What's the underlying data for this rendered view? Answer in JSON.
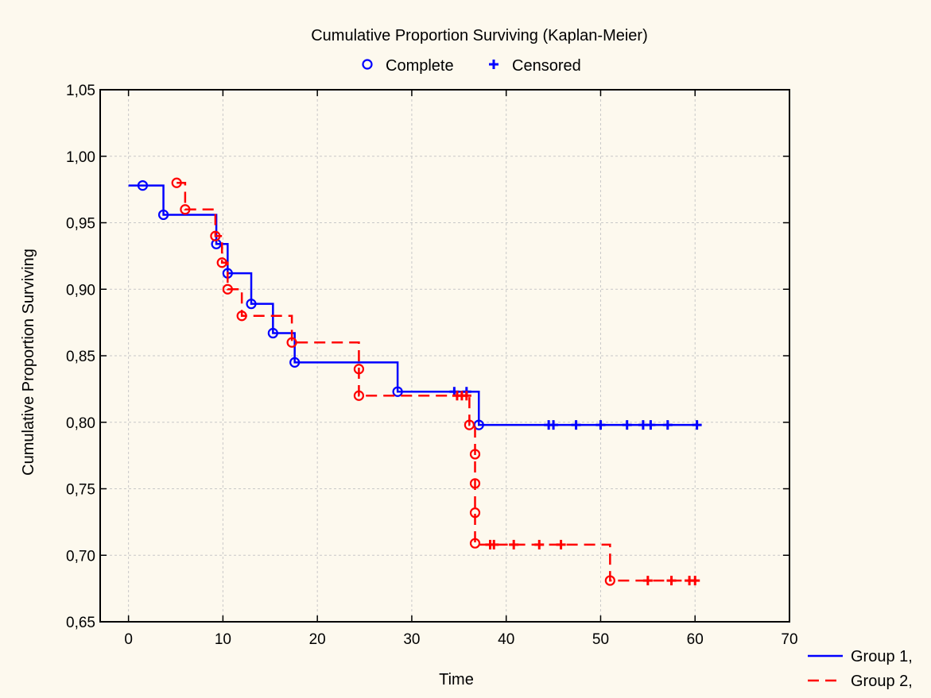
{
  "chart_data": {
    "type": "line",
    "title": "Cumulative Proportion Surviving (Kaplan-Meier)",
    "xlabel": "Time",
    "ylabel": "Cumulative Proportion Surviving",
    "xlim": [
      -3,
      70
    ],
    "ylim": [
      0.65,
      1.05
    ],
    "x_ticks": [
      0,
      10,
      20,
      30,
      40,
      50,
      60,
      70
    ],
    "y_ticks": [
      0.65,
      0.7,
      0.75,
      0.8,
      0.85,
      0.9,
      0.95,
      1.0,
      1.05
    ],
    "x_tick_labels": [
      "0",
      "10",
      "20",
      "30",
      "40",
      "50",
      "60",
      "70"
    ],
    "y_tick_labels": [
      "0,65",
      "0,70",
      "0,75",
      "0,80",
      "0,85",
      "0,90",
      "0,95",
      "1,00",
      "1,05"
    ],
    "grid": true,
    "marker_legend": [
      {
        "label": "Complete",
        "marker": "circle",
        "color": "#0000ff"
      },
      {
        "label": "Censored",
        "marker": "plus",
        "color": "#0000ff"
      }
    ],
    "series": [
      {
        "name": "Group 1,",
        "color": "#0000ff",
        "line_style": "solid",
        "step_points": [
          [
            0,
            0.978
          ],
          [
            1.5,
            0.978
          ],
          [
            3.7,
            0.956
          ],
          [
            9.3,
            0.934
          ],
          [
            10.5,
            0.912
          ],
          [
            13,
            0.889
          ],
          [
            15.3,
            0.867
          ],
          [
            17.6,
            0.845
          ],
          [
            28.5,
            0.823
          ],
          [
            37.1,
            0.798
          ],
          [
            60.2,
            0.798
          ]
        ],
        "complete": [
          [
            1.5,
            0.978
          ],
          [
            3.7,
            0.956
          ],
          [
            9.3,
            0.934
          ],
          [
            10.5,
            0.912
          ],
          [
            13,
            0.889
          ],
          [
            15.3,
            0.867
          ],
          [
            17.6,
            0.845
          ],
          [
            28.5,
            0.823
          ],
          [
            37.1,
            0.798
          ]
        ],
        "censored": [
          [
            34.5,
            0.823
          ],
          [
            35.8,
            0.823
          ],
          [
            44.5,
            0.798
          ],
          [
            45,
            0.798
          ],
          [
            47.4,
            0.798
          ],
          [
            50,
            0.798
          ],
          [
            52.8,
            0.798
          ],
          [
            54.5,
            0.798
          ],
          [
            55.3,
            0.798
          ],
          [
            57.1,
            0.798
          ],
          [
            60.2,
            0.798
          ]
        ]
      },
      {
        "name": "Group 2,",
        "color": "#ff0000",
        "line_style": "dashed",
        "step_points": [
          [
            5.1,
            0.98
          ],
          [
            6,
            0.96
          ],
          [
            9.2,
            0.94
          ],
          [
            9.9,
            0.92
          ],
          [
            10.5,
            0.9
          ],
          [
            12,
            0.88
          ],
          [
            17.3,
            0.86
          ],
          [
            24.4,
            0.82
          ],
          [
            36.1,
            0.798
          ],
          [
            36.7,
            0.708
          ],
          [
            51,
            0.681
          ],
          [
            60,
            0.681
          ]
        ],
        "complete": [
          [
            5.1,
            0.98
          ],
          [
            6,
            0.96
          ],
          [
            9.2,
            0.94
          ],
          [
            9.9,
            0.92
          ],
          [
            10.5,
            0.9
          ],
          [
            12,
            0.88
          ],
          [
            17.3,
            0.86
          ],
          [
            24.4,
            0.84
          ],
          [
            24.4,
            0.82
          ],
          [
            36.1,
            0.798
          ],
          [
            36.7,
            0.776
          ],
          [
            36.7,
            0.754
          ],
          [
            36.7,
            0.732
          ],
          [
            36.7,
            0.709
          ],
          [
            51,
            0.681
          ]
        ],
        "censored": [
          [
            34.8,
            0.82
          ],
          [
            35.3,
            0.82
          ],
          [
            35.8,
            0.82
          ],
          [
            38.3,
            0.708
          ],
          [
            38.7,
            0.708
          ],
          [
            40.8,
            0.708
          ],
          [
            43.5,
            0.708
          ],
          [
            45.8,
            0.708
          ],
          [
            55,
            0.681
          ],
          [
            57.5,
            0.681
          ],
          [
            59.4,
            0.681
          ],
          [
            60,
            0.681
          ]
        ]
      }
    ]
  }
}
